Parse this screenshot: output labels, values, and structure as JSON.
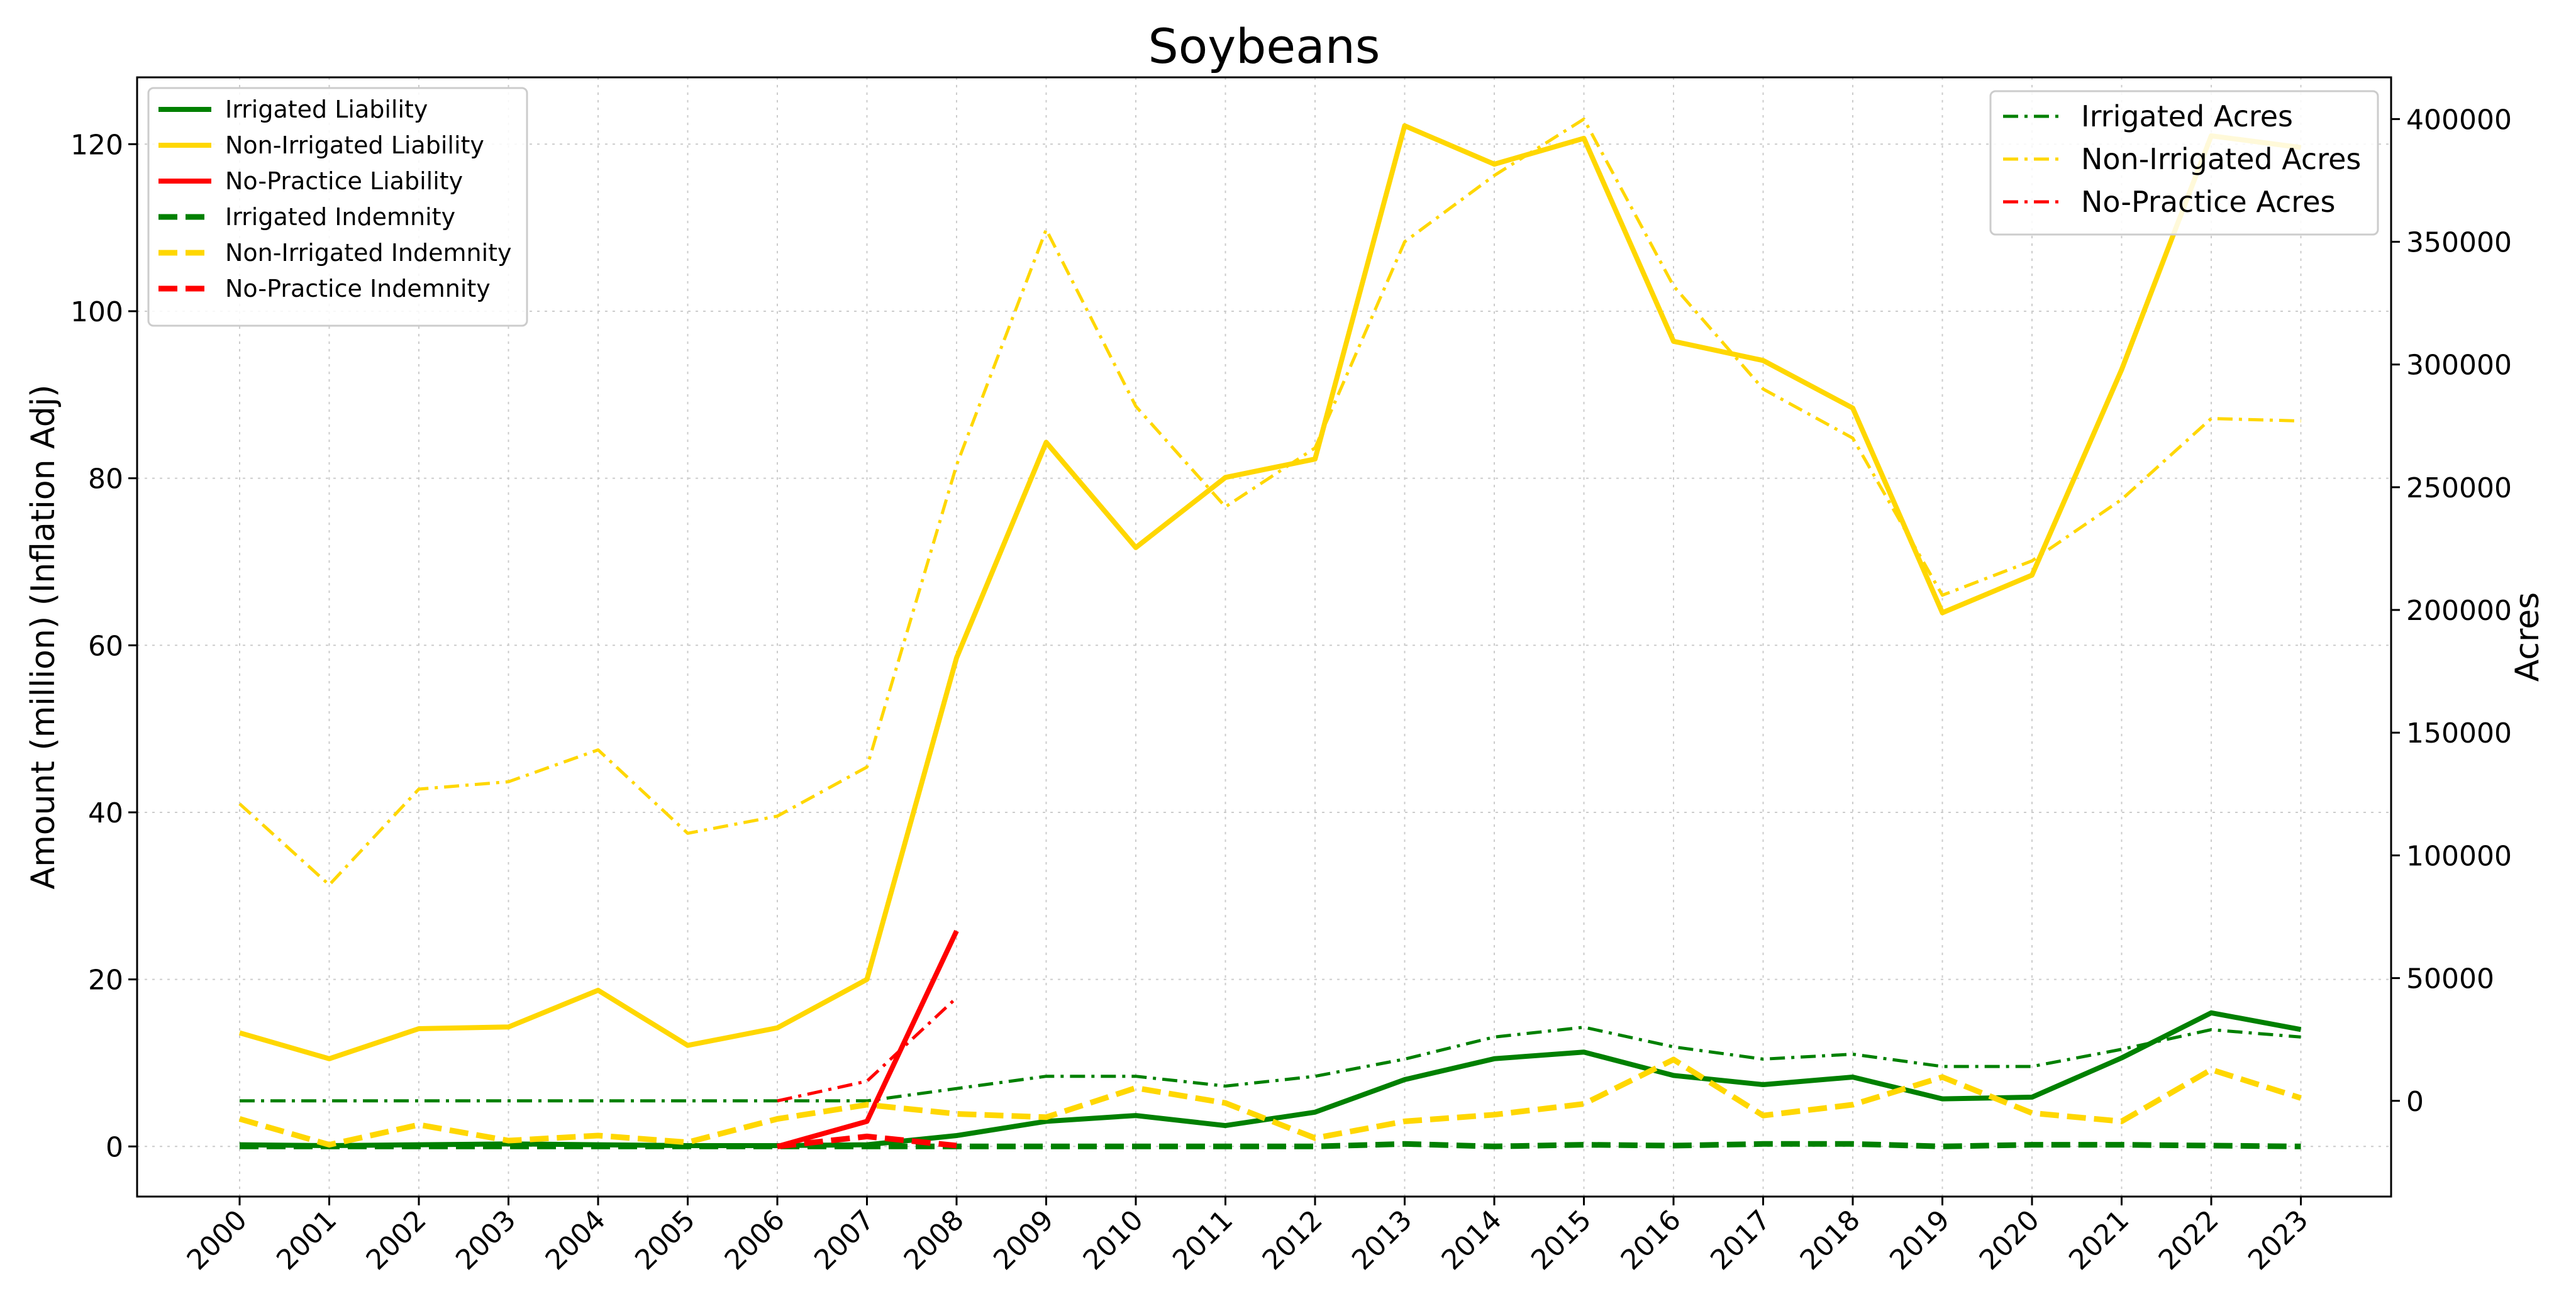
{
  "chart_data": {
    "type": "line",
    "title": "Soybeans",
    "ylabel_left": "Amount (million) (Inflation Adj)",
    "ylabel_right": "Acres",
    "xlabel": "",
    "x": [
      "2000",
      "2001",
      "2002",
      "2003",
      "2004",
      "2005",
      "2006",
      "2007",
      "2008",
      "2009",
      "2010",
      "2011",
      "2012",
      "2013",
      "2014",
      "2015",
      "2016",
      "2017",
      "2018",
      "2019",
      "2020",
      "2021",
      "2022",
      "2023"
    ],
    "ylim_left": [
      -6,
      128
    ],
    "ylim_right": [
      -39000,
      417000
    ],
    "yticks_left": [
      0,
      20,
      40,
      60,
      80,
      100,
      120
    ],
    "yticks_right": [
      0,
      50000,
      100000,
      150000,
      200000,
      250000,
      300000,
      350000,
      400000
    ],
    "ytick_labels_left": [
      "0",
      "20",
      "40",
      "60",
      "80",
      "100",
      "120"
    ],
    "ytick_labels_right": [
      "0",
      "50000",
      "100000",
      "150000",
      "200000",
      "250000",
      "300000",
      "350000",
      "400000"
    ],
    "grid": true,
    "legend_left_position": "upper-left",
    "legend_right_position": "upper-right",
    "colors": {
      "irrigated": "#008000",
      "non_irrigated": "#FFD700",
      "no_practice": "#FF0000"
    },
    "series_left": [
      {
        "name": "Irrigated Liability",
        "color": "#008000",
        "style": "solid",
        "values": [
          0.2,
          0.1,
          0.2,
          0.3,
          0.2,
          0.1,
          0.1,
          0.2,
          1.3,
          3.0,
          3.7,
          2.5,
          4.1,
          8.0,
          10.5,
          11.3,
          8.5,
          7.4,
          8.3,
          5.7,
          5.9,
          10.6,
          16.0,
          14.0
        ]
      },
      {
        "name": "Non-Irrigated Liability",
        "color": "#FFD700",
        "style": "solid",
        "values": [
          13.6,
          10.5,
          14.1,
          14.3,
          18.7,
          12.1,
          14.2,
          20.0,
          58.5,
          84.3,
          71.7,
          80.1,
          82.3,
          122.2,
          117.6,
          120.7,
          96.4,
          94.1,
          88.4,
          63.9,
          68.4,
          93.0,
          121.0,
          119.6
        ]
      },
      {
        "name": "No-Practice Liability",
        "color": "#FF0000",
        "style": "solid",
        "x_start_index": 6,
        "values": [
          0.0,
          3.0,
          25.8
        ]
      },
      {
        "name": "Irrigated Indemnity",
        "color": "#008000",
        "style": "dashed",
        "values": [
          0.0,
          0.0,
          0.0,
          0.0,
          0.0,
          0.0,
          0.0,
          0.0,
          0.0,
          0.0,
          0.0,
          0.0,
          0.0,
          0.3,
          0.0,
          0.2,
          0.1,
          0.3,
          0.3,
          0.0,
          0.2,
          0.2,
          0.1,
          0.0
        ]
      },
      {
        "name": "Non-Irrigated Indemnity",
        "color": "#FFD700",
        "style": "dashed",
        "values": [
          3.3,
          0.2,
          2.6,
          0.7,
          1.3,
          0.5,
          3.3,
          5.0,
          3.9,
          3.5,
          7.0,
          5.2,
          1.0,
          3.0,
          3.8,
          5.1,
          10.4,
          3.7,
          5.0,
          8.3,
          4.0,
          3.0,
          9.2,
          5.8
        ]
      },
      {
        "name": "No-Practice Indemnity",
        "color": "#FF0000",
        "style": "dashed",
        "x_start_index": 6,
        "values": [
          0.0,
          1.2,
          0.1
        ]
      }
    ],
    "series_right": [
      {
        "name": "Irrigated Acres",
        "color": "#008000",
        "style": "dashdot",
        "values": [
          0,
          0,
          0,
          0,
          0,
          0,
          0,
          0,
          5000,
          10000,
          10000,
          6000,
          10000,
          17000,
          26000,
          30000,
          22000,
          17000,
          19000,
          14000,
          14000,
          21000,
          29000,
          26000
        ]
      },
      {
        "name": "Non-Irrigated Acres",
        "color": "#FFD700",
        "style": "dashdot",
        "values": [
          121000,
          88000,
          127000,
          130000,
          143000,
          109000,
          116000,
          136000,
          259000,
          355000,
          283000,
          242000,
          266000,
          350000,
          377000,
          400000,
          332000,
          290000,
          270000,
          206000,
          220000,
          245000,
          278000,
          277000
        ]
      },
      {
        "name": "No-Practice Acres",
        "color": "#FF0000",
        "style": "dashdot",
        "x_start_index": 6,
        "values": [
          0,
          8000,
          42000
        ]
      }
    ]
  }
}
